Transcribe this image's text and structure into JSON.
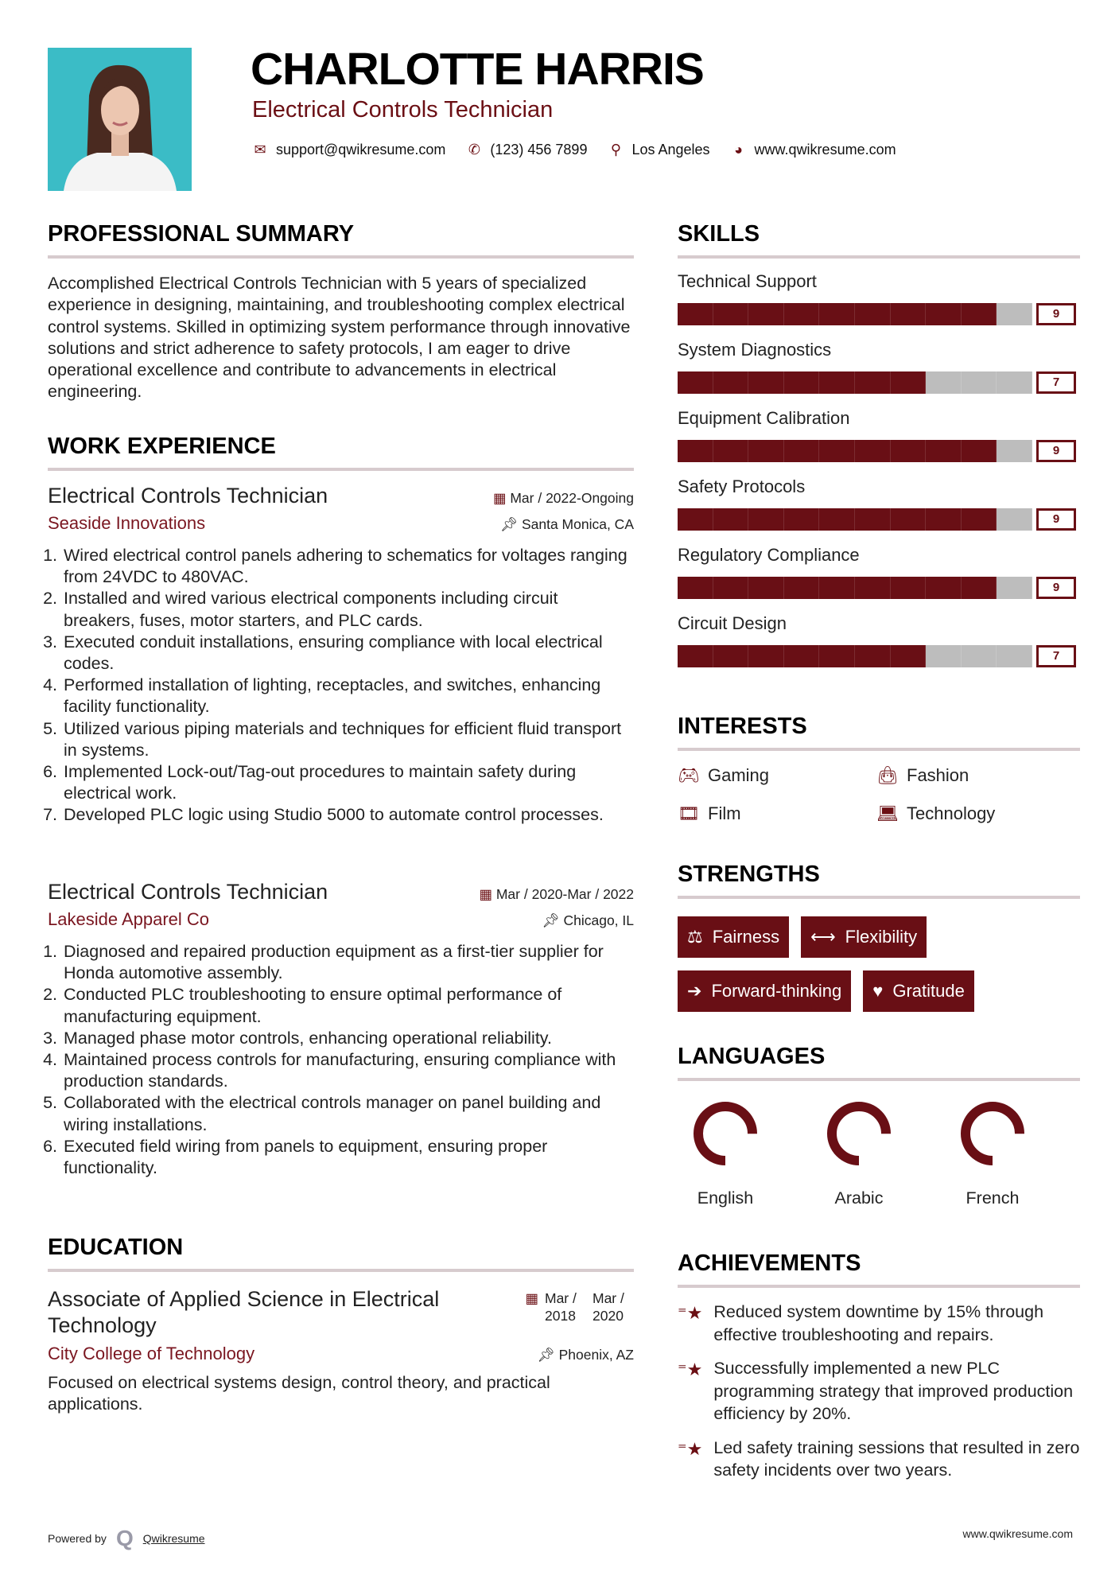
{
  "header": {
    "name": "CHARLOTTE HARRIS",
    "title": "Electrical Controls Technician",
    "contact": [
      {
        "icon": "envelope-icon",
        "text": "support@qwikresume.com"
      },
      {
        "icon": "phone-icon",
        "text": "(123) 456 7899"
      },
      {
        "icon": "map-pin-icon",
        "text": "Los Angeles"
      },
      {
        "icon": "globe-icon",
        "text": "www.qwikresume.com"
      }
    ]
  },
  "summary": {
    "heading": "PROFESSIONAL SUMMARY",
    "text": "Accomplished Electrical Controls Technician with 5 years of specialized experience in designing, maintaining, and troubleshooting complex electrical control systems. Skilled in optimizing system performance through innovative solutions and strict adherence to safety protocols, I am eager to drive operational excellence and contribute to advancements in electrical engineering."
  },
  "experience": {
    "heading": "WORK EXPERIENCE",
    "jobs": [
      {
        "title": "Electrical Controls Technician",
        "date": "Mar / 2022-Ongoing",
        "company": "Seaside Innovations",
        "location": "Santa Monica, CA",
        "bullets": [
          "Wired electrical control panels adhering to schematics for voltages ranging from 24VDC to 480VAC.",
          "Installed and wired various electrical components including circuit breakers, fuses, motor starters, and PLC cards.",
          "Executed conduit installations, ensuring compliance with local electrical codes.",
          "Performed installation of lighting, receptacles, and switches, enhancing facility functionality.",
          "Utilized various piping materials and techniques for efficient fluid transport in systems.",
          "Implemented Lock-out/Tag-out procedures to maintain safety during electrical work.",
          "Developed PLC logic using Studio 5000 to automate control processes."
        ]
      },
      {
        "title": "Electrical Controls Technician",
        "date": "Mar / 2020-Mar / 2022",
        "company": "Lakeside Apparel Co",
        "location": "Chicago, IL",
        "bullets": [
          "Diagnosed and repaired production equipment as a first-tier supplier for Honda automotive assembly.",
          "Conducted PLC troubleshooting to ensure optimal performance of manufacturing equipment.",
          "Managed phase motor controls, enhancing operational reliability.",
          "Maintained process controls for manufacturing, ensuring compliance with production standards.",
          "Collaborated with the electrical controls manager on panel building and wiring installations.",
          "Executed field wiring from panels to equipment, ensuring proper functionality."
        ]
      }
    ]
  },
  "education": {
    "heading": "EDUCATION",
    "degree": "Associate of Applied Science in Electrical Technology",
    "start": "Mar / 2018",
    "end": "Mar / 2020",
    "school": "City College of Technology",
    "location": "Phoenix, AZ",
    "description": "Focused on electrical systems design, control theory, and practical applications."
  },
  "skills": {
    "heading": "SKILLS",
    "max": 10,
    "items": [
      {
        "label": "Technical Support",
        "score": 9
      },
      {
        "label": "System Diagnostics",
        "score": 7
      },
      {
        "label": "Equipment Calibration",
        "score": 9
      },
      {
        "label": "Safety Protocols",
        "score": 9
      },
      {
        "label": "Regulatory Compliance",
        "score": 9
      },
      {
        "label": "Circuit Design",
        "score": 7
      }
    ]
  },
  "interests": {
    "heading": "INTERESTS",
    "items": [
      {
        "icon": "gamepad-icon",
        "label": "Gaming"
      },
      {
        "icon": "shopping-bag-icon",
        "label": "Fashion"
      },
      {
        "icon": "film-icon",
        "label": "Film"
      },
      {
        "icon": "laptop-icon",
        "label": "Technology"
      }
    ]
  },
  "strengths": {
    "heading": "STRENGTHS",
    "items": [
      {
        "icon": "balance-scale-icon",
        "label": "Fairness"
      },
      {
        "icon": "arrows-horizontal-icon",
        "label": "Flexibility"
      },
      {
        "icon": "arrow-right-icon",
        "label": "Forward-thinking"
      },
      {
        "icon": "heart-icon",
        "label": "Gratitude"
      }
    ]
  },
  "languages": {
    "heading": "LANGUAGES",
    "items": [
      {
        "label": "English",
        "level": 0.75
      },
      {
        "label": "Arabic",
        "level": 0.75
      },
      {
        "label": "French",
        "level": 0.75
      }
    ]
  },
  "achievements": {
    "heading": "ACHIEVEMENTS",
    "items": [
      "Reduced system downtime by 15% through effective troubleshooting and repairs.",
      "Successfully implemented a new PLC programming strategy that improved production efficiency by 20%.",
      "Led safety training sessions that resulted in zero safety incidents over two years."
    ]
  },
  "footer": {
    "powered_by": "Powered by",
    "brand": "Qwikresume",
    "website": "www.qwikresume.com"
  },
  "colors": {
    "accent": "#690f15",
    "photo_bg": "#3bbcc6",
    "bar_empty": "#bdbdbd",
    "rule": "#d7cbce"
  }
}
